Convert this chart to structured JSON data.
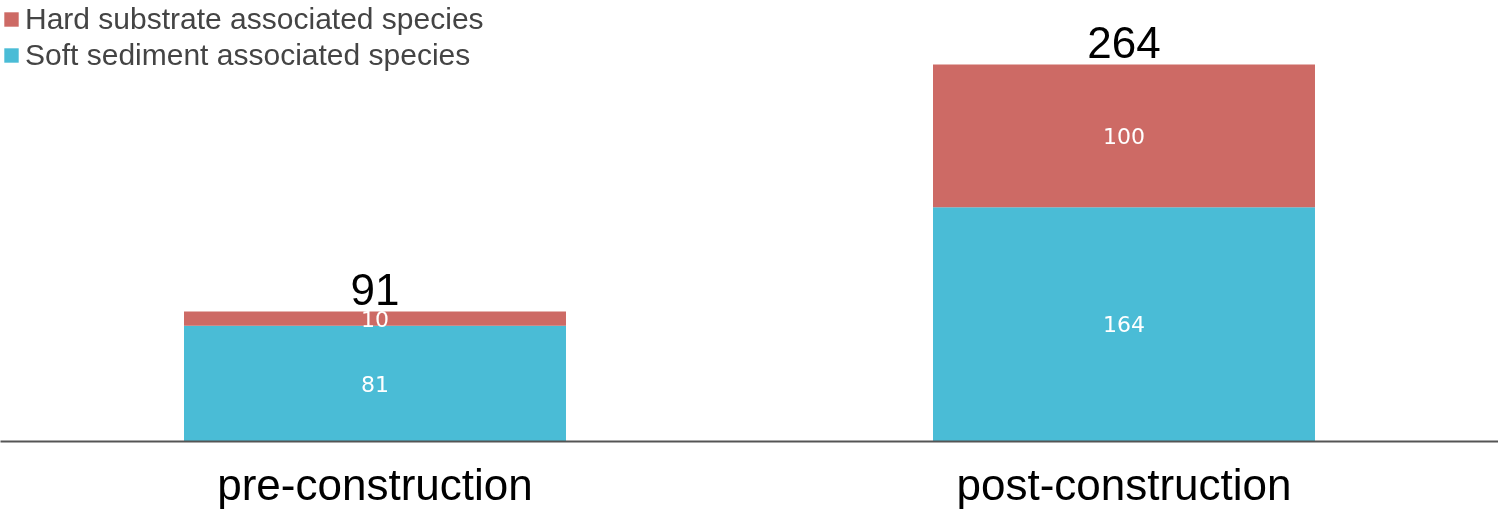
{
  "chart_data": {
    "type": "bar",
    "stacked": true,
    "categories": [
      "pre-construction",
      "post-construction"
    ],
    "series": [
      {
        "name": "Soft sediment associated species",
        "color": "#4abcd6",
        "values": [
          81,
          164
        ]
      },
      {
        "name": "Hard substrate associated species",
        "color": "#cd6a65",
        "values": [
          10,
          100
        ]
      }
    ],
    "data_labels": true,
    "totals": [
      "91",
      "264"
    ],
    "legend": "top left",
    "grid": false
  }
}
